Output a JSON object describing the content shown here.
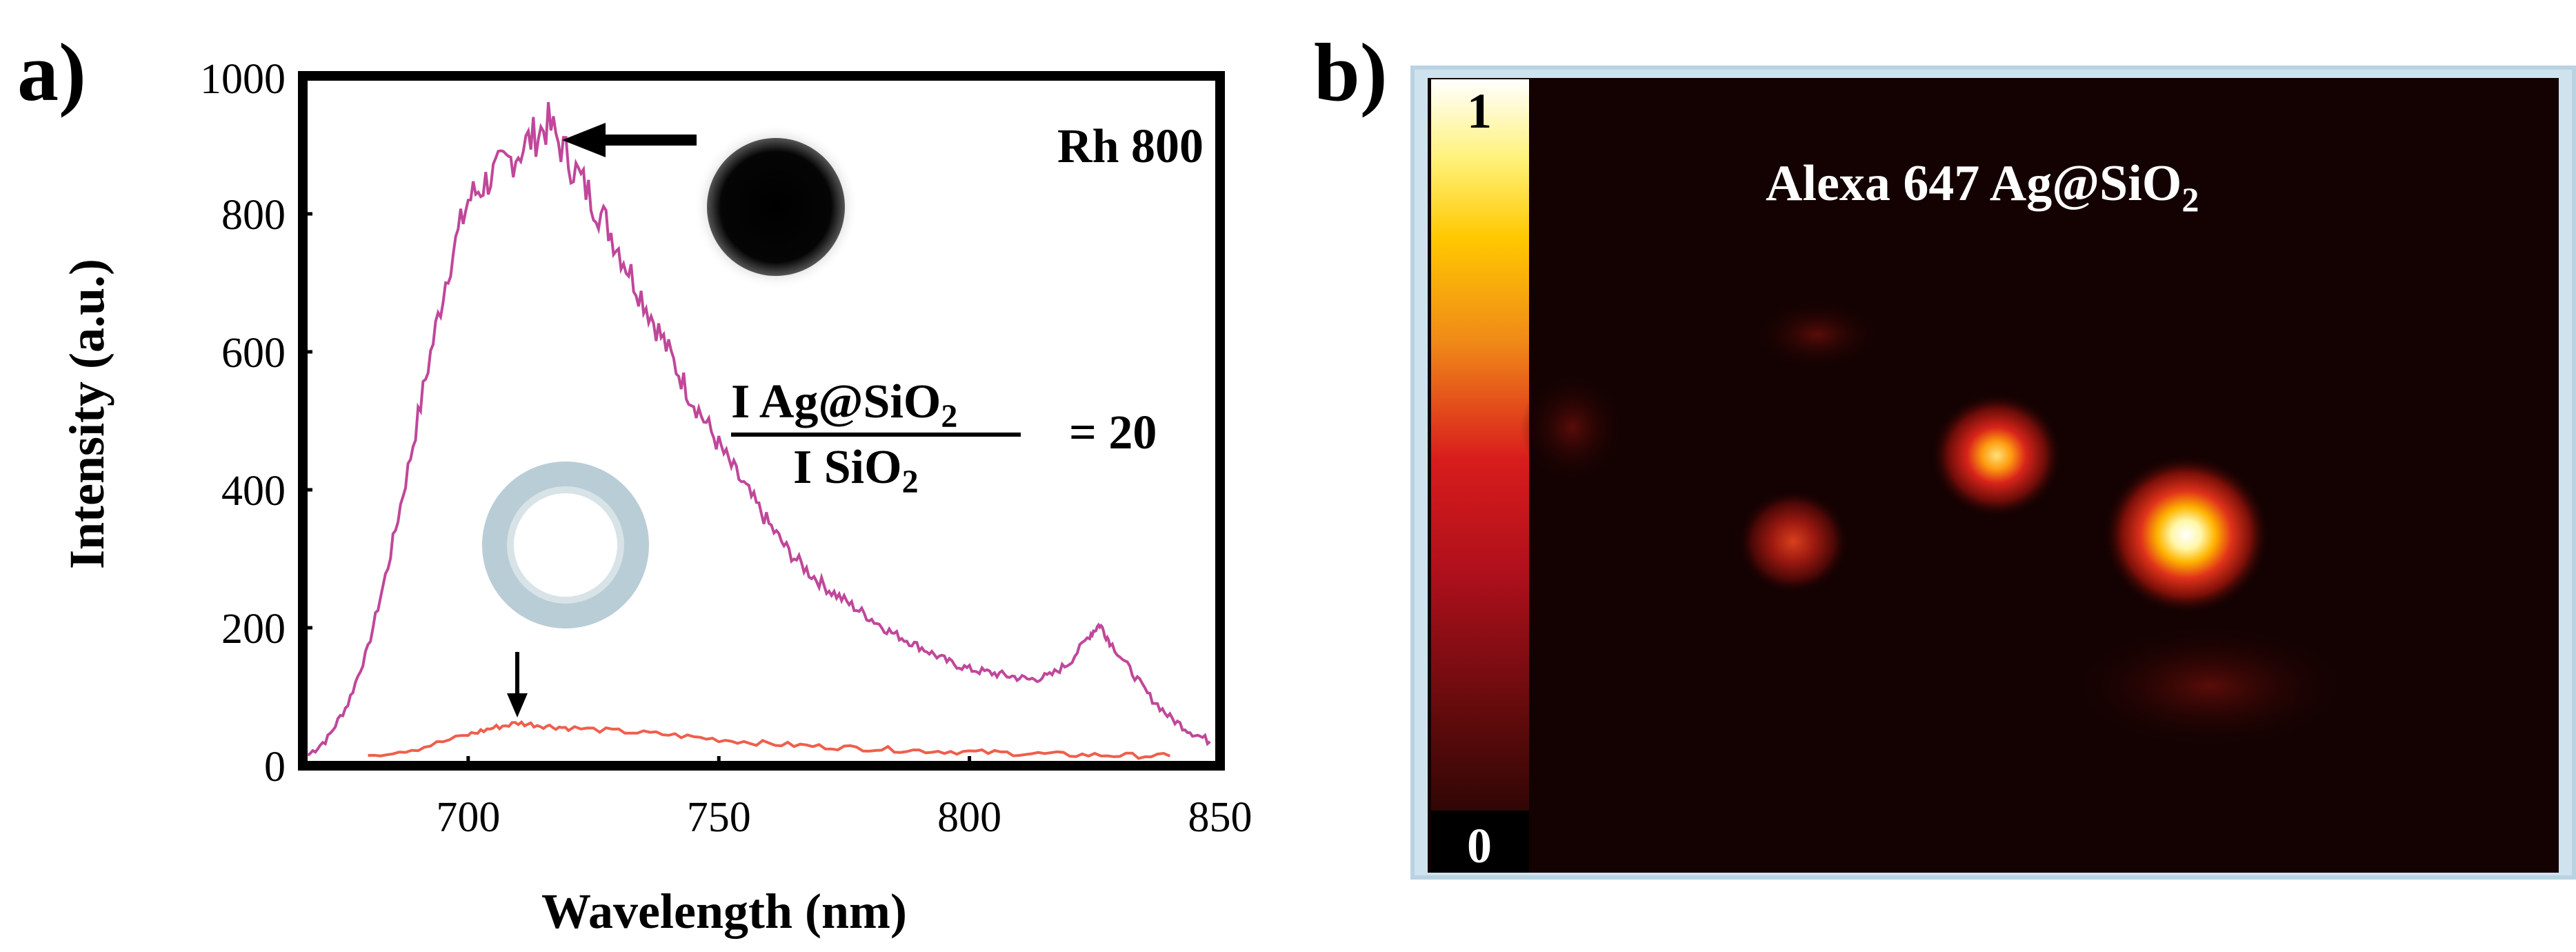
{
  "panel_a": {
    "label": "a)",
    "legend_label": "Rh 800",
    "ratio_numerator": "I Ag@SiO",
    "ratio_numerator_sub": "2",
    "ratio_denominator": "I SiO",
    "ratio_denominator_sub": "2",
    "ratio_value": "= 20"
  },
  "panel_b": {
    "label": "b)",
    "image_title": "Alexa 647 Ag@SiO",
    "image_title_sub": "2",
    "colorbar_max": "1",
    "colorbar_min": "0",
    "colorbar_colors": [
      "#ffffff",
      "#fff27a",
      "#ffc800",
      "#f08a18",
      "#d81c1c",
      "#b0101c",
      "#5a0a0a",
      "#120202"
    ]
  },
  "chart_data": {
    "type": "line",
    "title": "",
    "xlabel": "Wavelength (nm)",
    "ylabel": "Intensity (a.u.)",
    "xlim": [
      667,
      850
    ],
    "ylim": [
      0,
      1000
    ],
    "x_ticks": [
      700,
      750,
      800,
      850
    ],
    "y_ticks": [
      0,
      200,
      400,
      600,
      800,
      1000
    ],
    "grid": false,
    "series": [
      {
        "name": "Ag@SiO2",
        "color": "#c0479a",
        "x": [
          668,
          672,
          676,
          680,
          684,
          688,
          692,
          696,
          700,
          704,
          708,
          712,
          716,
          720,
          724,
          728,
          732,
          736,
          740,
          744,
          748,
          752,
          756,
          760,
          764,
          768,
          772,
          776,
          780,
          784,
          788,
          792,
          796,
          800,
          804,
          808,
          812,
          816,
          820,
          824,
          826,
          828,
          832,
          836,
          840,
          844,
          848
        ],
        "y": [
          15,
          40,
          90,
          170,
          290,
          430,
          580,
          720,
          820,
          850,
          875,
          905,
          930,
          880,
          830,
          780,
          720,
          660,
          600,
          540,
          490,
          440,
          395,
          350,
          310,
          280,
          255,
          235,
          215,
          195,
          180,
          165,
          150,
          140,
          135,
          130,
          125,
          130,
          150,
          190,
          205,
          180,
          140,
          100,
          70,
          50,
          35
        ]
      },
      {
        "name": "SiO2",
        "color": "#ee5f4c",
        "x": [
          680,
          690,
          700,
          705,
          710,
          715,
          720,
          730,
          740,
          750,
          760,
          770,
          780,
          790,
          800,
          810,
          820,
          830,
          840
        ],
        "y": [
          15,
          25,
          45,
          55,
          62,
          58,
          55,
          50,
          45,
          38,
          32,
          28,
          25,
          22,
          20,
          18,
          16,
          15,
          14
        ]
      }
    ],
    "annotations": [
      "Rh 800",
      "I Ag@SiO2 / I SiO2 = 20"
    ]
  }
}
